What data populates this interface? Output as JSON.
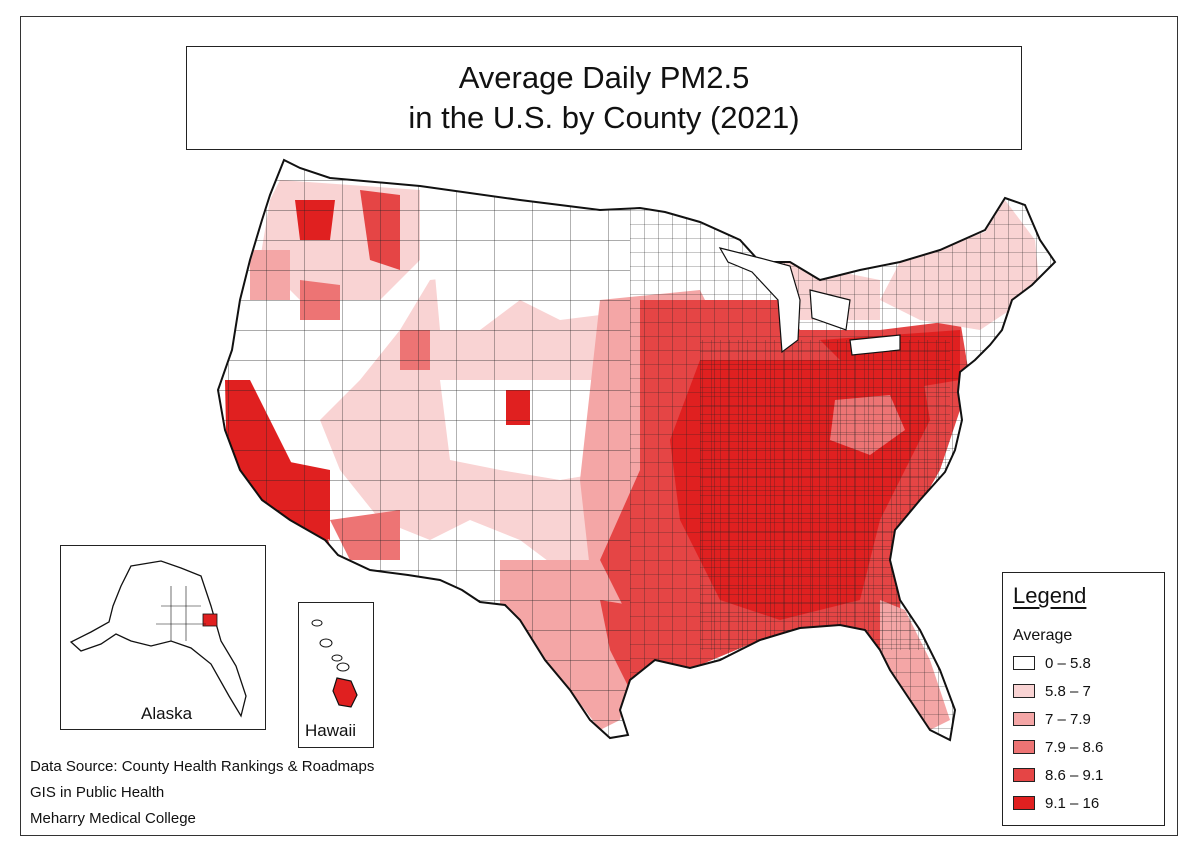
{
  "title": {
    "line1": "Average Daily PM2.5",
    "line2": "in the U.S. by County (2021)"
  },
  "insets": {
    "alaska": "Alaska",
    "hawaii": "Hawaii"
  },
  "legend": {
    "title": "Legend",
    "subtitle": "Average",
    "classes": [
      {
        "label": "0 – 5.8",
        "color": "#ffffff"
      },
      {
        "label": "5.8 – 7",
        "color": "#f9d3d3"
      },
      {
        "label": "7 – 7.9",
        "color": "#f4a6a6"
      },
      {
        "label": "7.9 – 8.6",
        "color": "#ed7474"
      },
      {
        "label": "8.6 – 9.1",
        "color": "#e54545"
      },
      {
        "label": "9.1 – 16",
        "color": "#e02020"
      }
    ]
  },
  "credits": {
    "source": "Data Source: County Health Rankings & Roadmaps",
    "line2": "GIS in Public Health",
    "line3": "Meharry Medical College"
  },
  "colors": {
    "class0": "#ffffff",
    "class1": "#f9d3d3",
    "class2": "#f4a6a6",
    "class3": "#ed7474",
    "class4": "#e54545",
    "class5": "#e02020",
    "border": "#222222"
  }
}
